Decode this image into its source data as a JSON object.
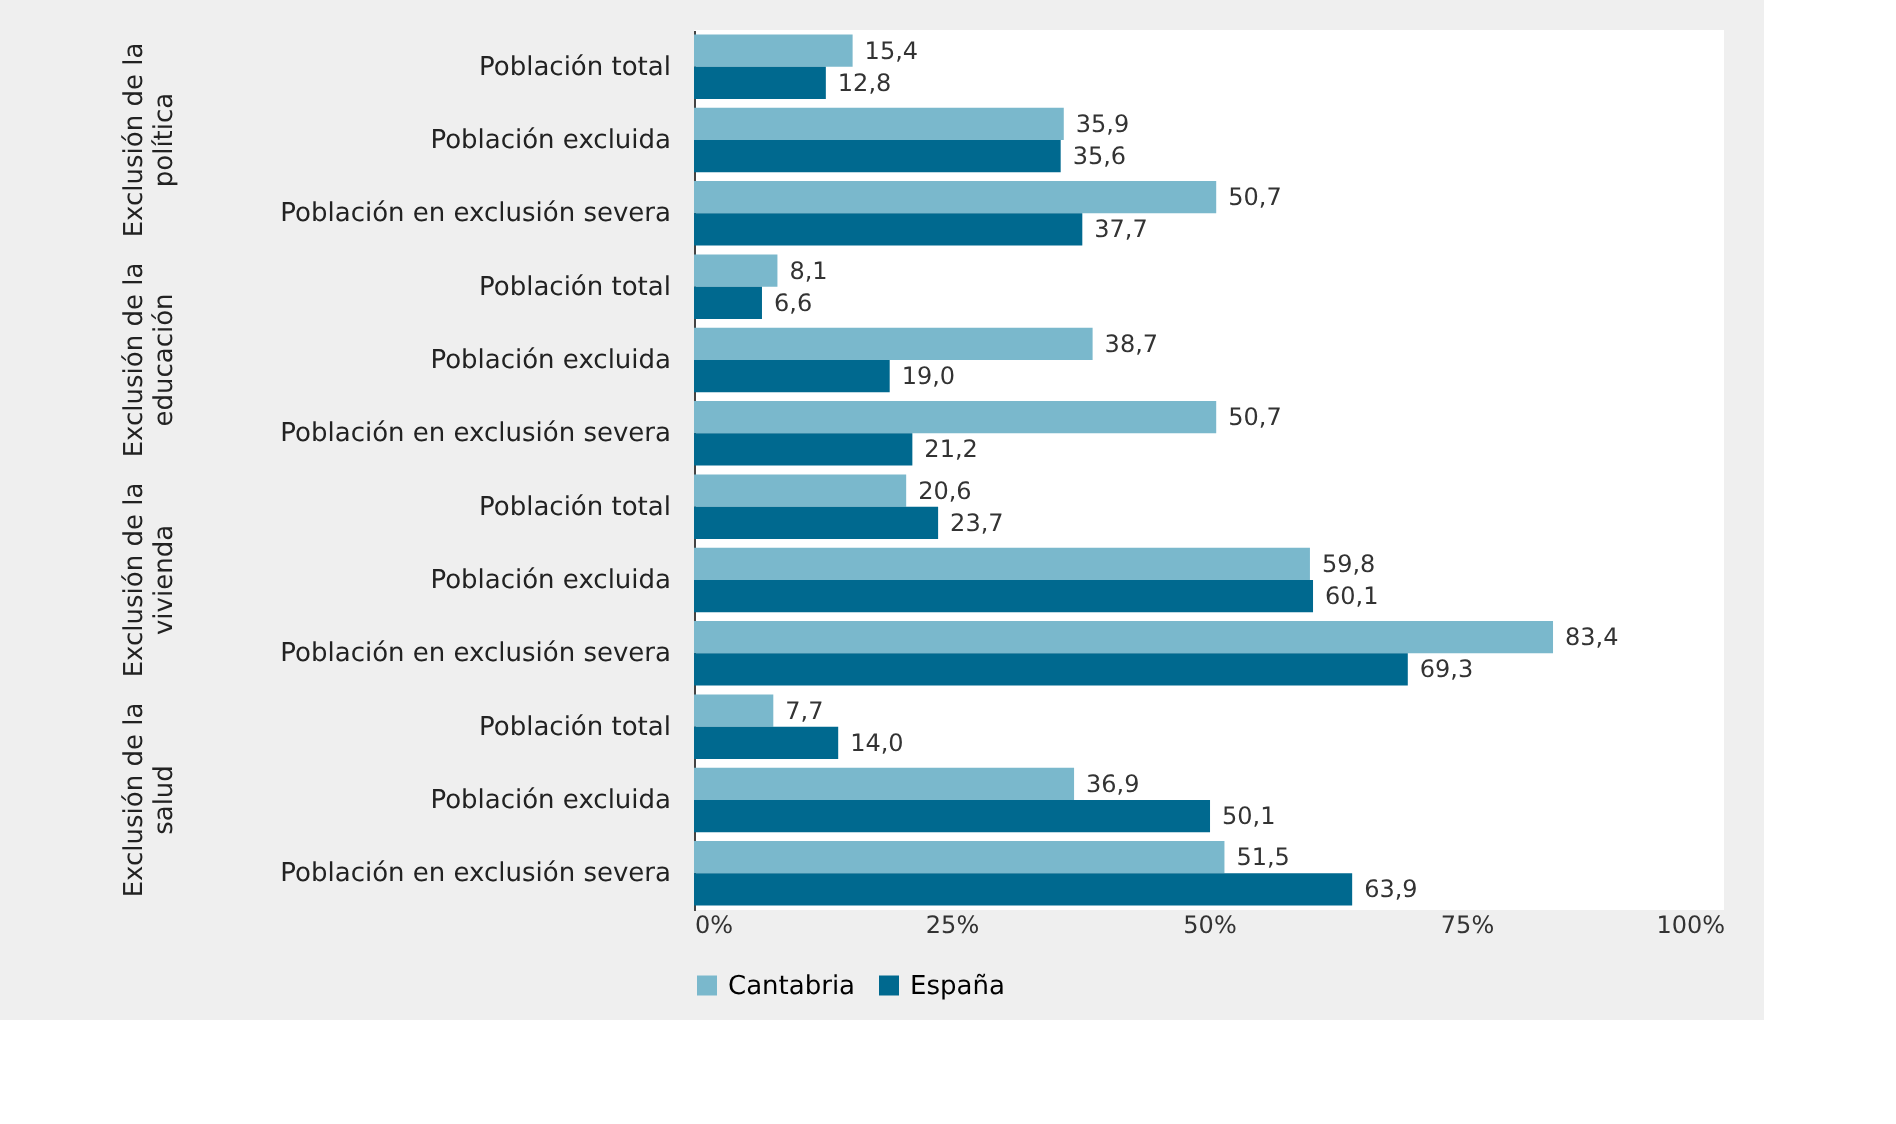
{
  "chart_data": {
    "type": "bar",
    "orientation": "horizontal",
    "categories": [
      "Población total",
      "Población excluida",
      "Población en exclusión severa",
      "Población total",
      "Población excluida",
      "Población en exclusión severa",
      "Población total",
      "Población excluida",
      "Población en exclusión severa",
      "Población total",
      "Población excluida",
      "Población en exclusión severa"
    ],
    "series": [
      {
        "name": "Cantabria",
        "color": "#7ab8cc",
        "values": [
          15.4,
          35.9,
          50.7,
          8.1,
          38.7,
          50.7,
          20.6,
          59.8,
          83.4,
          7.7,
          36.9,
          51.5
        ],
        "value_labels": [
          "15,4",
          "35,9",
          "50,7",
          "8,1",
          "38,7",
          "50,7",
          "20,6",
          "59,8",
          "83,4",
          "7,7",
          "36,9",
          "51,5"
        ]
      },
      {
        "name": "España",
        "color": "#00698f",
        "values": [
          12.8,
          35.6,
          37.7,
          6.6,
          19.0,
          21.2,
          23.7,
          60.1,
          69.3,
          14.0,
          50.1,
          63.9
        ],
        "value_labels": [
          "12,8",
          "35,6",
          "37,7",
          "6,6",
          "19,0",
          "21,2",
          "23,7",
          "60,1",
          "69,3",
          "14,0",
          "50,1",
          "63,9"
        ]
      }
    ],
    "xlim": [
      0,
      100
    ],
    "xticks": [
      {
        "value": 0,
        "label": "0%"
      },
      {
        "value": 25,
        "label": "25%"
      },
      {
        "value": 50,
        "label": "50%"
      },
      {
        "value": 75,
        "label": "75%"
      },
      {
        "value": 100,
        "label": "100%"
      }
    ],
    "annotations": [
      "Exclusión de la política",
      "Exclusión de la educación",
      "Exclusión de la vivienda",
      "Exclusión de la salud"
    ],
    "legend": "bottom",
    "grid": false
  }
}
